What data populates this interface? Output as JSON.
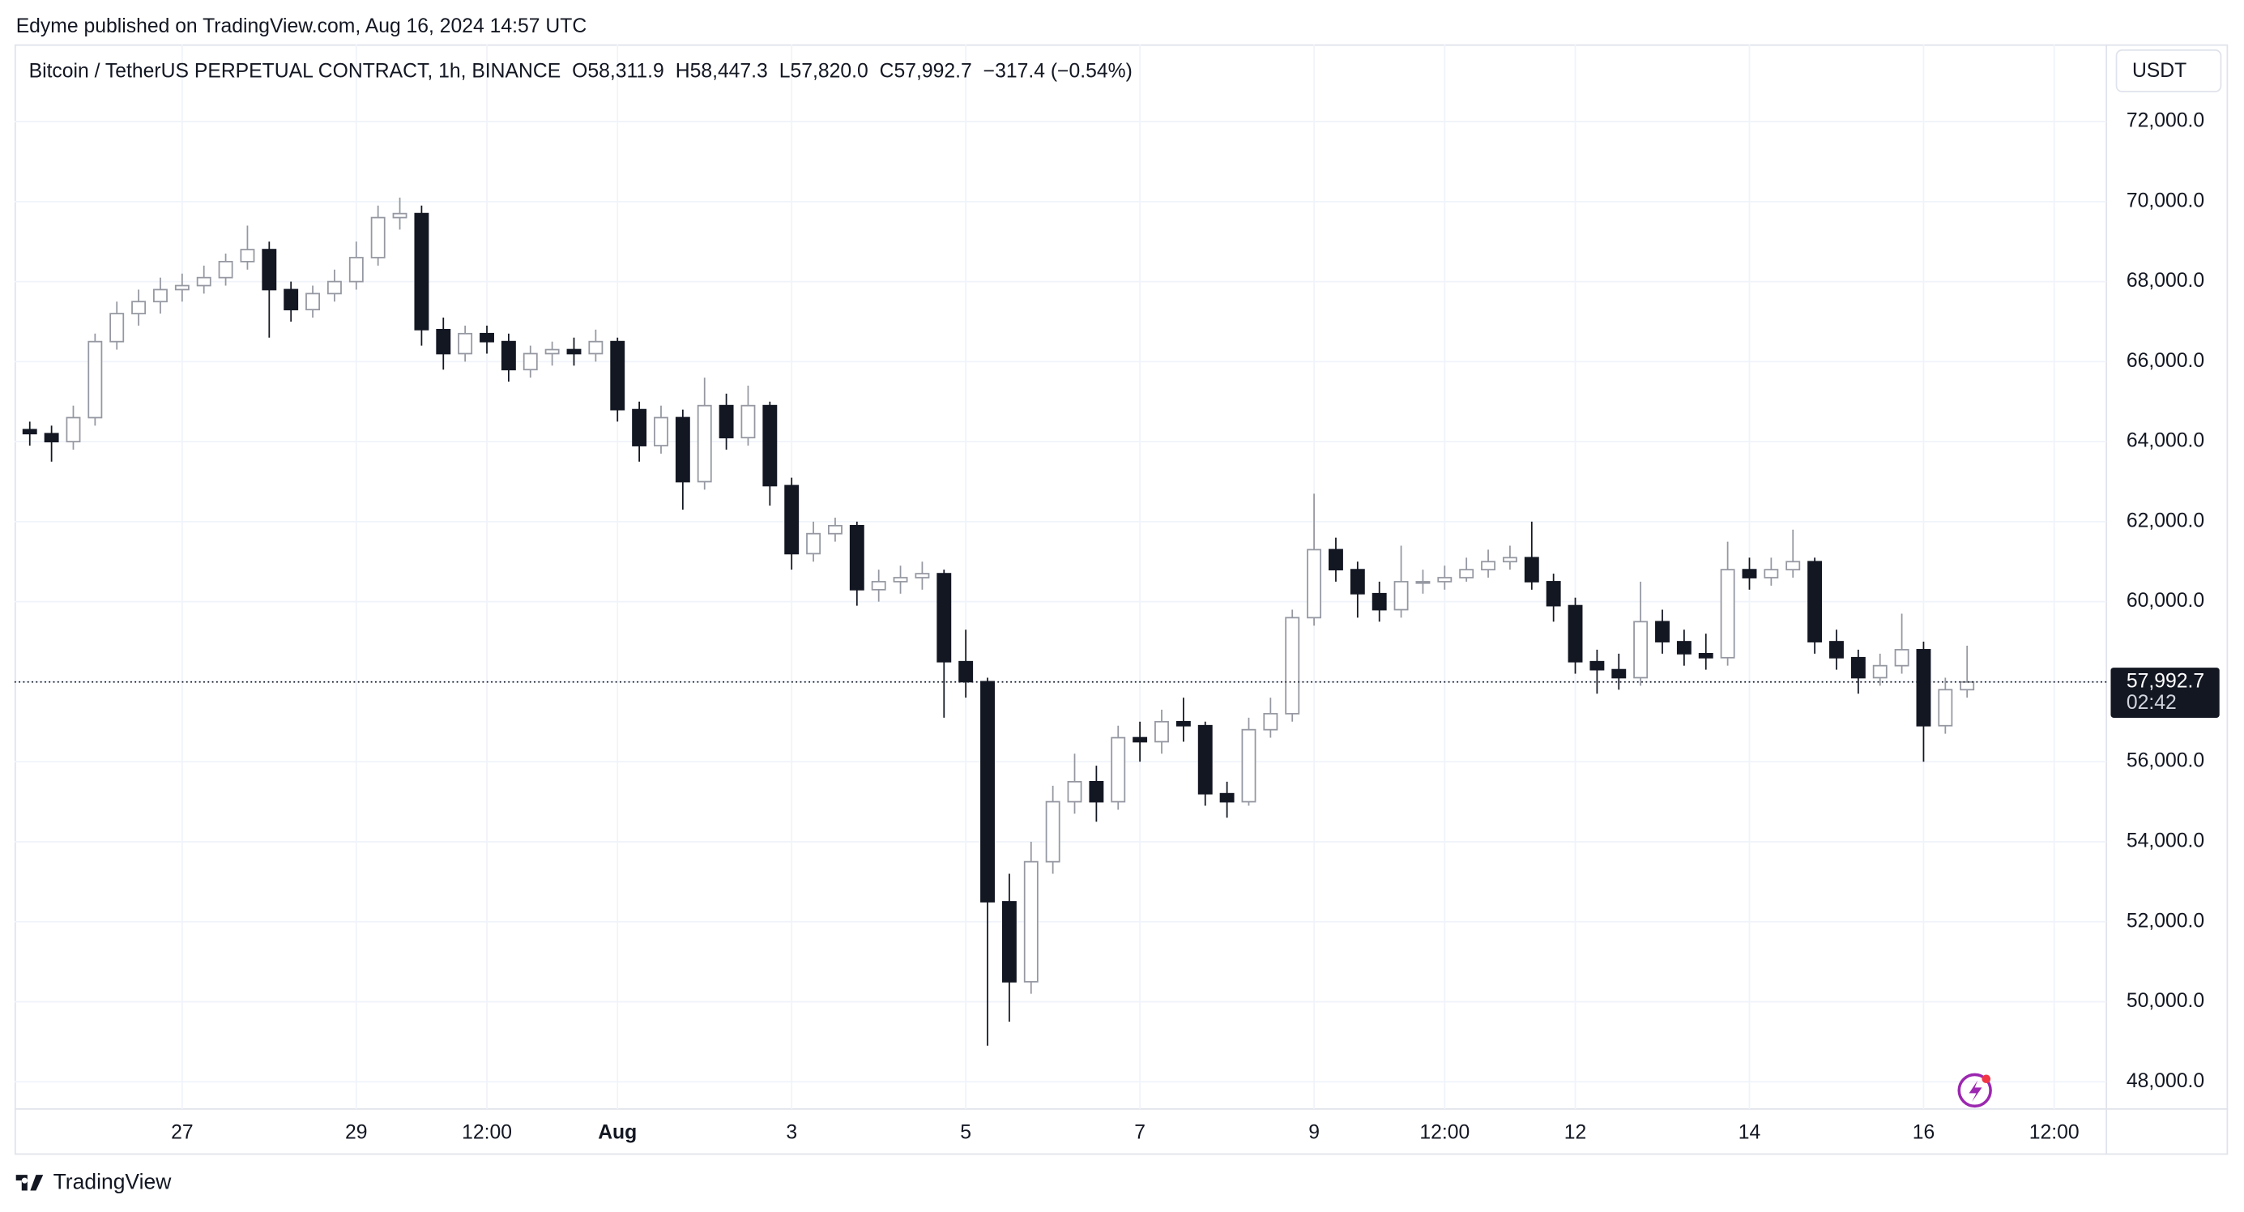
{
  "header": {
    "publisher": "Edyme published on TradingView.com, Aug 16, 2024 14:57 UTC",
    "footer": "TradingView"
  },
  "chart_data": {
    "type": "candlestick",
    "title": "Bitcoin / TetherUS PERPETUAL CONTRACT, 1h, BINANCE",
    "legend": [
      "O58,311.9",
      "H58,447.3",
      "L57,820.0",
      "C57,992.7",
      "−317.4 (−0.54%)"
    ],
    "currency": "USDT",
    "countdown": "02:42",
    "up_color": "#ffffff",
    "up_border": "#9598a1",
    "down_color": "#131722",
    "grid": true,
    "xlim": [
      -0.7,
      95.4
    ],
    "xticks": [
      {
        "value": 7,
        "label": "27"
      },
      {
        "value": 15,
        "label": "29"
      },
      {
        "value": 21,
        "label": "12:00"
      },
      {
        "value": 27,
        "label": "Aug"
      },
      {
        "value": 35,
        "label": "3"
      },
      {
        "value": 43,
        "label": "5"
      },
      {
        "value": 51,
        "label": "7"
      },
      {
        "value": 59,
        "label": "9"
      },
      {
        "value": 65,
        "label": "12:00"
      },
      {
        "value": 71,
        "label": "12"
      },
      {
        "value": 79,
        "label": "14"
      },
      {
        "value": 87,
        "label": "16"
      },
      {
        "value": 93,
        "label": "12:00"
      }
    ],
    "ylim": [
      47320,
      73930
    ],
    "yticks": [
      {
        "value": 48000,
        "label": "48,000.0"
      },
      {
        "value": 50000,
        "label": "50,000.0"
      },
      {
        "value": 52000,
        "label": "52,000.0"
      },
      {
        "value": 54000,
        "label": "54,000.0"
      },
      {
        "value": 56000,
        "label": "56,000.0"
      },
      {
        "value": 58000,
        "label": "58,000.0"
      },
      {
        "value": 60000,
        "label": "60,000.0"
      },
      {
        "value": 62000,
        "label": "62,000.0"
      },
      {
        "value": 64000,
        "label": "64,000.0"
      },
      {
        "value": 66000,
        "label": "66,000.0"
      },
      {
        "value": 68000,
        "label": "68,000.0"
      },
      {
        "value": 70000,
        "label": "70,000.0"
      },
      {
        "value": 72000,
        "label": "72,000.0"
      }
    ],
    "last_price": {
      "value": 57992.7,
      "label": "57,992.7"
    },
    "open": [
      64300,
      64200,
      64000,
      64600,
      66500,
      67200,
      67500,
      67800,
      67900,
      68100,
      68500,
      68800,
      67800,
      67300,
      67700,
      68000,
      68600,
      69600,
      69700,
      66800,
      66200,
      66700,
      66500,
      65800,
      66200,
      66300,
      66200,
      66500,
      64800,
      63900,
      64600,
      63000,
      64900,
      64100,
      64900,
      62900,
      61200,
      61700,
      61900,
      60300,
      60500,
      60600,
      60700,
      58500,
      58000,
      52500,
      50500,
      53500,
      55000,
      55500,
      55000,
      56600,
      56500,
      57000,
      56900,
      55200,
      55000,
      56800,
      57200,
      59600,
      61300,
      60800,
      60200,
      59800,
      60500,
      60500,
      60600,
      60800,
      61000,
      61100,
      60500,
      59900,
      58500,
      58300,
      58100,
      59500,
      59000,
      58700,
      58600,
      60800,
      60600,
      60800,
      61000,
      59000,
      58600,
      58100,
      58400,
      58800,
      56900,
      57800
    ],
    "high": [
      64500,
      64400,
      64900,
      66700,
      67500,
      67800,
      68100,
      68200,
      68400,
      68700,
      69400,
      69000,
      68000,
      67900,
      68300,
      69000,
      69900,
      70100,
      69900,
      67100,
      66900,
      66900,
      66700,
      66400,
      66500,
      66600,
      66800,
      66600,
      65000,
      64900,
      64800,
      65600,
      65200,
      65400,
      65000,
      63100,
      62000,
      62100,
      62000,
      60800,
      60900,
      61000,
      60800,
      59300,
      58100,
      53200,
      54000,
      55400,
      56200,
      55900,
      56900,
      57000,
      57300,
      57600,
      57000,
      55500,
      57100,
      57600,
      59800,
      62700,
      61600,
      61000,
      60500,
      61400,
      60800,
      60900,
      61100,
      61300,
      61400,
      62000,
      60700,
      60100,
      58800,
      58700,
      60500,
      59800,
      59300,
      59200,
      61500,
      61100,
      61100,
      61800,
      61100,
      59300,
      58800,
      58700,
      59700,
      59000,
      58100,
      58900
    ],
    "low": [
      63900,
      63500,
      63800,
      64400,
      66300,
      66900,
      67200,
      67500,
      67700,
      67900,
      68300,
      66600,
      67000,
      67100,
      67500,
      67800,
      68400,
      69300,
      66400,
      65800,
      66000,
      66200,
      65500,
      65600,
      65900,
      65900,
      66000,
      64500,
      63500,
      63700,
      62300,
      62800,
      63800,
      63900,
      62400,
      60800,
      61000,
      61500,
      59900,
      60000,
      60200,
      60300,
      57100,
      57600,
      48900,
      49500,
      50200,
      53200,
      54700,
      54500,
      54800,
      56000,
      56200,
      56500,
      54900,
      54600,
      54900,
      56600,
      57000,
      59400,
      60500,
      59600,
      59500,
      59600,
      60200,
      60300,
      60500,
      60600,
      60800,
      60300,
      59500,
      58200,
      57700,
      57800,
      57900,
      58700,
      58400,
      58300,
      58400,
      60300,
      60400,
      60600,
      58700,
      58300,
      57700,
      57900,
      58200,
      56000,
      56700,
      57600
    ],
    "close": [
      64200,
      64000,
      64600,
      66500,
      67200,
      67500,
      67800,
      67900,
      68100,
      68500,
      68800,
      67800,
      67300,
      67700,
      68000,
      68600,
      69600,
      69700,
      66800,
      66200,
      66700,
      66500,
      65800,
      66200,
      66300,
      66200,
      66500,
      64800,
      63900,
      64600,
      63000,
      64900,
      64100,
      64900,
      62900,
      61200,
      61700,
      61900,
      60300,
      60500,
      60600,
      60700,
      58500,
      58000,
      52500,
      50500,
      53500,
      55000,
      55500,
      55000,
      56600,
      56500,
      57000,
      56900,
      55200,
      55000,
      56800,
      57200,
      59600,
      61300,
      60800,
      60200,
      59800,
      60500,
      60500,
      60600,
      60800,
      61000,
      61100,
      60500,
      59900,
      58500,
      58300,
      58100,
      59500,
      59000,
      58700,
      58600,
      60800,
      60600,
      60800,
      61000,
      59000,
      58600,
      58100,
      58400,
      58800,
      56900,
      57800,
      57992.7
    ]
  }
}
